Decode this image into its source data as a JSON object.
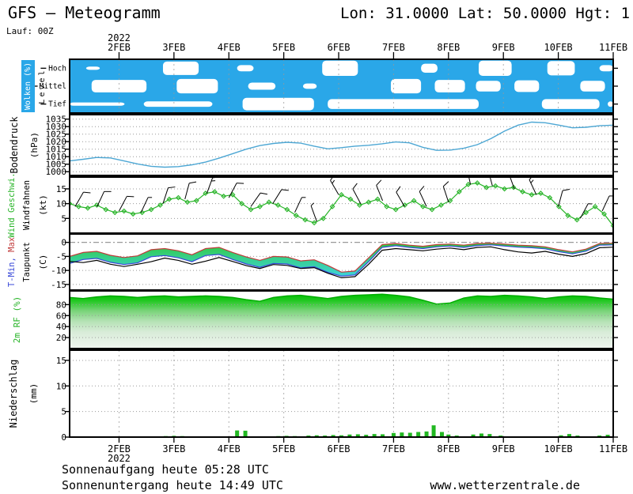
{
  "header": {
    "title": "GFS – Meteogramm",
    "coords": "Lon: 31.0000 Lat: 50.0000 Hgt: 1",
    "run_label": "Lauf: 00Z"
  },
  "footer": {
    "sunrise": "Sonnenaufgang heute 05:28 UTC",
    "sunset": "Sonnenuntergang heute 14:49 UTC",
    "website": "www.wetterzentrale.de"
  },
  "colors": {
    "cloud_blue": "#2aa7e8",
    "pressure_line": "#4da7d4",
    "wind_green": "#28b428",
    "temp_max_red": "#c03a3a",
    "temp_min_blue": "#3848d8",
    "dewpoint_black": "#000000",
    "band_green": "#30c93a",
    "band_cyan": "#3ed2d6",
    "rf_green": "#00c000",
    "precip_green": "#22b822",
    "precip_red": "#e86868",
    "grid_gray": "#999999"
  },
  "chart_data": {
    "type": "meteogram",
    "x_axis": {
      "year": "2022",
      "ticks": [
        "2FEB",
        "3FEB",
        "4FEB",
        "5FEB",
        "6FEB",
        "7FEB",
        "8FEB",
        "9FEB",
        "10FEB",
        "11FEB"
      ],
      "domain": [
        -0.9,
        9.0
      ]
    },
    "panels": [
      {
        "id": "clouds",
        "type": "heatmap",
        "ylabel_main": "Wolken (%)",
        "ylabel_sub": "Level",
        "ytick_labels": [
          "Hoch",
          "Mittel",
          "Tief"
        ],
        "levels": [
          {
            "name": "Hoch",
            "clear_gaps": [
              [
                -0.6,
                -0.35,
                0.18
              ],
              [
                0.8,
                1.45,
                0.75
              ],
              [
                2.15,
                2.45,
                0.35
              ],
              [
                3.7,
                4.35,
                0.85
              ],
              [
                5.5,
                5.8,
                0.5
              ],
              [
                6.55,
                7.15,
                0.85
              ],
              [
                7.8,
                8.3,
                0.8
              ],
              [
                8.75,
                9.0,
                0.35
              ]
            ]
          },
          {
            "name": "Mittel",
            "clear_gaps": [
              [
                -0.5,
                0.5,
                0.7
              ],
              [
                1.05,
                1.8,
                0.8
              ],
              [
                2.35,
                2.85,
                0.4
              ],
              [
                3.35,
                3.6,
                0.3
              ],
              [
                4.95,
                5.5,
                0.8
              ],
              [
                5.75,
                6.3,
                0.7
              ],
              [
                6.5,
                6.95,
                0.6
              ],
              [
                7.2,
                7.65,
                0.65
              ],
              [
                8.4,
                8.85,
                0.6
              ]
            ]
          },
          {
            "name": "Tief",
            "clear_gaps": [
              [
                -0.9,
                0.1,
                0.18
              ],
              [
                0.45,
                1.7,
                0.3
              ],
              [
                2.25,
                3.55,
                0.7
              ],
              [
                3.8,
                6.55,
                0.55
              ],
              [
                7.7,
                8.75,
                0.55
              ],
              [
                8.9,
                9.0,
                0.3
              ]
            ]
          }
        ]
      },
      {
        "id": "pressure",
        "type": "line",
        "ylabel_main": "Bodendruck",
        "ylabel_unit": "(hPa)",
        "yticks": [
          1000,
          1005,
          1010,
          1015,
          1020,
          1025,
          1030,
          1035
        ],
        "ylim": [
          997.5,
          1038
        ],
        "series": [
          {
            "name": "Bodendruck",
            "values": [
              1007.2,
              1008.3,
              1009.5,
              1009.2,
              1007.2,
              1005.2,
              1003.6,
              1003,
              1003.4,
              1004.6,
              1006.4,
              1009,
              1012,
              1015,
              1017.4,
              1018.8,
              1019.6,
              1019,
              1017,
              1015.2,
              1016,
              1017,
              1017.6,
              1018.6,
              1019.8,
              1019.2,
              1016.2,
              1014.2,
              1014.4,
              1015.6,
              1018,
              1022,
              1027,
              1031,
              1033,
              1032.6,
              1031,
              1029.2,
              1029.6,
              1030.6,
              1031
            ]
          }
        ]
      },
      {
        "id": "wind",
        "type": "line+barbs",
        "ylabel_main": "Wind Geschwi.",
        "ylabel_sub": "Windfahnen",
        "ylabel_unit": "(kt)",
        "yticks": [
          5,
          10,
          15
        ],
        "ylim": [
          0,
          19
        ],
        "series": [
          {
            "name": "Windgeschwindigkeit",
            "values": [
              10,
              9,
              8.5,
              9.5,
              8,
              7,
              7.5,
              6.5,
              7,
              8,
              9.5,
              11.5,
              12,
              10.5,
              11,
              13.5,
              14,
              12.5,
              13,
              10,
              8,
              9,
              10.5,
              9.5,
              8,
              6,
              4.5,
              3.5,
              5,
              9,
              13,
              11.5,
              9.5,
              10.5,
              11.5,
              9,
              8,
              9.5,
              11,
              9,
              8,
              9.5,
              11,
              14,
              16.5,
              17,
              15.5,
              16,
              15,
              15.5,
              14,
              13,
              13.5,
              12,
              9,
              6,
              4.5,
              7,
              9,
              6.5,
              2.5
            ]
          }
        ],
        "barbs": [
          [
            -0.8,
            9,
            30
          ],
          [
            -0.4,
            9,
            25
          ],
          [
            0,
            7.5,
            28
          ],
          [
            0.4,
            7,
            25
          ],
          [
            0.8,
            10,
            18
          ],
          [
            1.2,
            11.5,
            15
          ],
          [
            1.6,
            13.5,
            20
          ],
          [
            2.0,
            12,
            28
          ],
          [
            2.4,
            9,
            35
          ],
          [
            2.8,
            10,
            32
          ],
          [
            3.2,
            7,
            25
          ],
          [
            3.6,
            4,
            -20
          ],
          [
            4.0,
            13,
            -30
          ],
          [
            4.4,
            10,
            -28
          ],
          [
            4.8,
            11,
            -22
          ],
          [
            5.2,
            9,
            -30
          ],
          [
            5.6,
            9,
            -25
          ],
          [
            6.0,
            10.5,
            -18
          ],
          [
            6.4,
            16.5,
            -12
          ],
          [
            6.8,
            16,
            -15
          ],
          [
            7.2,
            15,
            -20
          ],
          [
            7.6,
            13,
            -25
          ],
          [
            8.0,
            9,
            15
          ],
          [
            8.4,
            5,
            28
          ],
          [
            8.8,
            7.5,
            25
          ]
        ]
      },
      {
        "id": "temperature",
        "type": "band+line",
        "ylabel_main_parts": [
          {
            "text": "T-Min, ",
            "color": "#3848d8"
          },
          {
            "text": "Max",
            "color": "#c03a3a"
          }
        ],
        "ylabel_sub": "Taupunkt",
        "ylabel_unit": "(C)",
        "yticks": [
          0,
          -5,
          -10,
          -15
        ],
        "ylim": [
          -17,
          3
        ],
        "series": [
          {
            "name": "T-Max",
            "values": [
              -5,
              -3.6,
              -3.2,
              -4.6,
              -5.4,
              -4.8,
              -2.6,
              -2.2,
              -3,
              -4.4,
              -2.2,
              -1.8,
              -3.6,
              -5.2,
              -6.4,
              -5,
              -5.2,
              -6.6,
              -6.2,
              -8.2,
              -10.6,
              -10.2,
              -5.5,
              -0.8,
              -0.4,
              -1,
              -1.4,
              -0.8,
              -0.6,
              -1,
              -0.4,
              -0.3,
              -0.6,
              -1,
              -1.2,
              -1.6,
              -2.6,
              -3.4,
              -2.4,
              -0.4,
              -0.3
            ]
          },
          {
            "name": "T-Min",
            "values": [
              -7.5,
              -6.1,
              -5.7,
              -7.1,
              -7.9,
              -7.3,
              -5.1,
              -4.7,
              -5.5,
              -6.9,
              -4.7,
              -4.3,
              -6.1,
              -7.7,
              -8.9,
              -7.5,
              -7.7,
              -9.1,
              -8.7,
              -10.7,
              -12,
              -11.6,
              -6.9,
              -1.8,
              -1.2,
              -1.8,
              -2.2,
              -1.6,
              -1.3,
              -1.8,
              -1.1,
              -0.9,
              -1.3,
              -1.7,
              -1.9,
              -2.3,
              -3.3,
              -4.1,
              -3.1,
              -1,
              -0.9
            ]
          },
          {
            "name": "Taupunkt",
            "values": [
              -6.8,
              -7.2,
              -6.4,
              -7.8,
              -8.6,
              -7.8,
              -6.9,
              -5.6,
              -6.4,
              -7.8,
              -6.7,
              -5.4,
              -6.8,
              -8.3,
              -9.3,
              -7.9,
              -8.2,
              -9.3,
              -9,
              -11,
              -12.6,
              -12.2,
              -7.8,
              -2.8,
              -2.2,
              -2.6,
              -3,
              -2.4,
              -2,
              -2.6,
              -1.8,
              -1.6,
              -2.6,
              -3.4,
              -3.8,
              -3.2,
              -4.2,
              -5,
              -4,
              -1.9,
              -1.7
            ]
          }
        ]
      },
      {
        "id": "humidity",
        "type": "area",
        "ylabel_main": "2m RF (%)",
        "yticks": [
          20,
          40,
          60,
          80
        ],
        "ylim": [
          0,
          105
        ],
        "series": [
          {
            "name": "2m RF",
            "values": [
              93,
              91,
              94,
              96,
              95,
              93,
              95,
              96,
              94,
              95,
              96,
              95,
              93,
              89,
              86,
              93,
              96,
              97,
              94,
              91,
              95,
              97,
              98,
              99,
              97,
              94,
              88,
              81,
              83,
              92,
              96,
              95,
              97,
              96,
              94,
              91,
              94,
              96,
              95,
              92,
              90
            ]
          }
        ]
      },
      {
        "id": "precip",
        "type": "bar",
        "ylabel_main": "Niederschlag",
        "ylabel_unit": "(mm)",
        "yticks": [
          0,
          5,
          10,
          15
        ],
        "ylim": [
          0,
          17
        ],
        "bars": [
          [
            0.85,
            0.2
          ],
          [
            1.0,
            0.25
          ],
          [
            1.15,
            0.2
          ],
          [
            2.15,
            1.3
          ],
          [
            2.3,
            1.25
          ],
          [
            2.9,
            0.2
          ],
          [
            3.05,
            0.25
          ],
          [
            3.2,
            0.2
          ],
          [
            3.45,
            0.3
          ],
          [
            3.6,
            0.35
          ],
          [
            3.75,
            0.3
          ],
          [
            3.9,
            0.4
          ],
          [
            4.05,
            0.35
          ],
          [
            4.2,
            0.5
          ],
          [
            4.35,
            0.55
          ],
          [
            4.5,
            0.45
          ],
          [
            4.65,
            0.6
          ],
          [
            4.8,
            0.55
          ],
          [
            5.0,
            0.8
          ],
          [
            5.15,
            0.9
          ],
          [
            5.3,
            0.85
          ],
          [
            5.45,
            1.0
          ],
          [
            5.6,
            1.1
          ],
          [
            5.73,
            2.3
          ],
          [
            5.88,
            1.0
          ],
          [
            6.0,
            0.5
          ],
          [
            6.15,
            0.3
          ],
          [
            6.45,
            0.5
          ],
          [
            6.6,
            0.7
          ],
          [
            6.75,
            0.6
          ],
          [
            6.95,
            0.3
          ],
          [
            8.05,
            0.35
          ],
          [
            8.2,
            0.6
          ],
          [
            8.35,
            0.3
          ],
          [
            8.75,
            0.3
          ],
          [
            8.9,
            0.45
          ]
        ],
        "bars_convective": [
          [
            2.45,
            0.12
          ],
          [
            5.5,
            0.12
          ],
          [
            6.3,
            0.1
          ],
          [
            8.3,
            0.12
          ]
        ]
      }
    ]
  }
}
